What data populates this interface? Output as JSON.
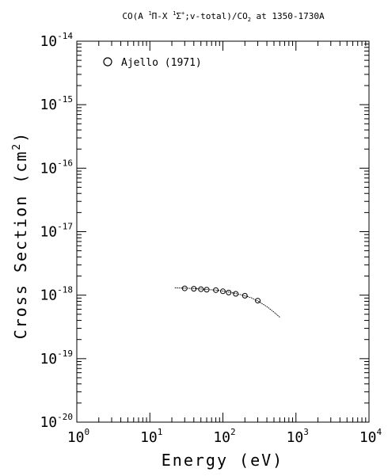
{
  "chart_data": {
    "type": "scatter",
    "title": "CO(A ¹Π-X ¹Σ⁺;v-total)/CO₂ at 1350-1730A",
    "title_parts": {
      "prefix": "CO(A ",
      "sup1": "1",
      "mid1": "Π-X ",
      "sup2": "1",
      "mid2": "Σ",
      "sup3": "+",
      "mid3": ";v-total)/CO",
      "sub1": "2",
      "suffix": " at 1350-1730A"
    },
    "xlabel": "Energy (eV)",
    "ylabel_parts": {
      "main": "Cross Section (cm",
      "sup": "2",
      "end": ")"
    },
    "xscale": "log",
    "yscale": "log",
    "xlim": [
      1,
      10000
    ],
    "ylim": [
      1e-20,
      1e-14
    ],
    "grid": false,
    "legend_position": "top-left",
    "x_tick_labels": [
      {
        "base": "10",
        "exp": "0",
        "value": 1
      },
      {
        "base": "10",
        "exp": "1",
        "value": 10
      },
      {
        "base": "10",
        "exp": "2",
        "value": 100
      },
      {
        "base": "10",
        "exp": "3",
        "value": 1000
      },
      {
        "base": "10",
        "exp": "4",
        "value": 10000
      }
    ],
    "y_tick_labels": [
      {
        "base": "10",
        "exp": "-14",
        "value": 1e-14
      },
      {
        "base": "10",
        "exp": "-15",
        "value": 1e-15
      },
      {
        "base": "10",
        "exp": "-16",
        "value": 1e-16
      },
      {
        "base": "10",
        "exp": "-17",
        "value": 1e-17
      },
      {
        "base": "10",
        "exp": "-18",
        "value": 1e-18
      },
      {
        "base": "10",
        "exp": "-19",
        "value": 1e-19
      },
      {
        "base": "10",
        "exp": "-20",
        "value": 1e-20
      }
    ],
    "series": [
      {
        "name": "Ajello (1971)",
        "kind": "markers",
        "marker": "open-circle",
        "x": [
          30,
          40,
          50,
          60,
          80,
          100,
          120,
          150,
          200,
          300
        ],
        "y": [
          1.28e-18,
          1.26e-18,
          1.24e-18,
          1.22e-18,
          1.2e-18,
          1.15e-18,
          1.1e-18,
          1.05e-18,
          9.8e-19,
          8.2e-19
        ]
      },
      {
        "kind": "fit-line",
        "x": [
          22,
          30,
          40,
          50,
          60,
          80,
          100,
          120,
          150,
          200,
          250,
          300,
          400,
          500,
          600
        ],
        "y": [
          1.3e-18,
          1.29e-18,
          1.27e-18,
          1.25e-18,
          1.23e-18,
          1.2e-18,
          1.16e-18,
          1.12e-18,
          1.06e-18,
          9.8e-19,
          9e-19,
          8.1e-19,
          6.6e-19,
          5.4e-19,
          4.5e-19
        ]
      }
    ],
    "colors": {
      "axes": "#000000",
      "background": "#ffffff",
      "marker": "#000000"
    }
  }
}
